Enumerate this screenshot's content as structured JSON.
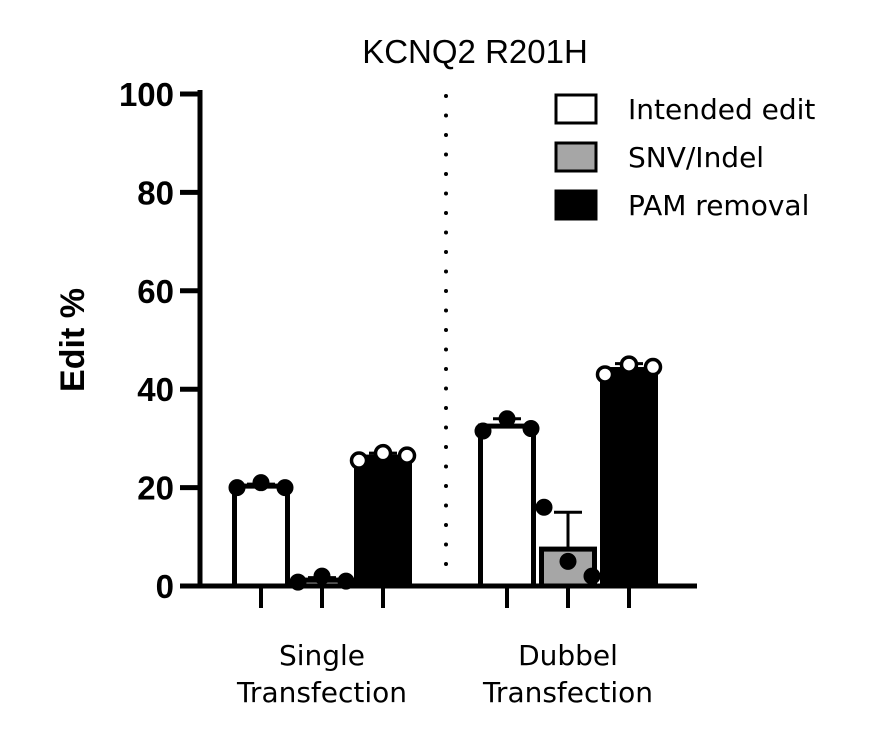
{
  "chart_data": {
    "type": "bar",
    "title": "KCNQ2 R201H",
    "ylabel": "Edit %",
    "xlabel": "",
    "ylim": [
      0,
      100
    ],
    "yticks": [
      "0",
      "20",
      "40",
      "60",
      "80",
      "100"
    ],
    "categories": [
      "Single\nTransfection",
      "Dubbel\nTransfection"
    ],
    "legend_position": "top-right",
    "series": [
      {
        "name": "Intended edit",
        "fill": "#ffffff",
        "values": [
          20.3,
          32.5
        ],
        "error": [
          0.4,
          1.5
        ],
        "points": [
          [
            20.0,
            21.0,
            20.0
          ],
          [
            31.5,
            34.0,
            32.0
          ]
        ]
      },
      {
        "name": "SNV/Indel",
        "fill": "#a6a6a6",
        "values": [
          1.2,
          7.5
        ],
        "error": [
          0.5,
          7.5
        ],
        "points": [
          [
            0.8,
            2.0,
            1.0
          ],
          [
            16.0,
            5.0,
            2.0
          ]
        ]
      },
      {
        "name": "PAM removal",
        "fill": "#000000",
        "values": [
          26.2,
          44.0
        ],
        "error": [
          0.8,
          1.2
        ],
        "points": [
          [
            25.5,
            27.0,
            26.5
          ],
          [
            43.0,
            45.0,
            44.5
          ]
        ]
      }
    ],
    "separator": "dotted vertical line between groups"
  }
}
